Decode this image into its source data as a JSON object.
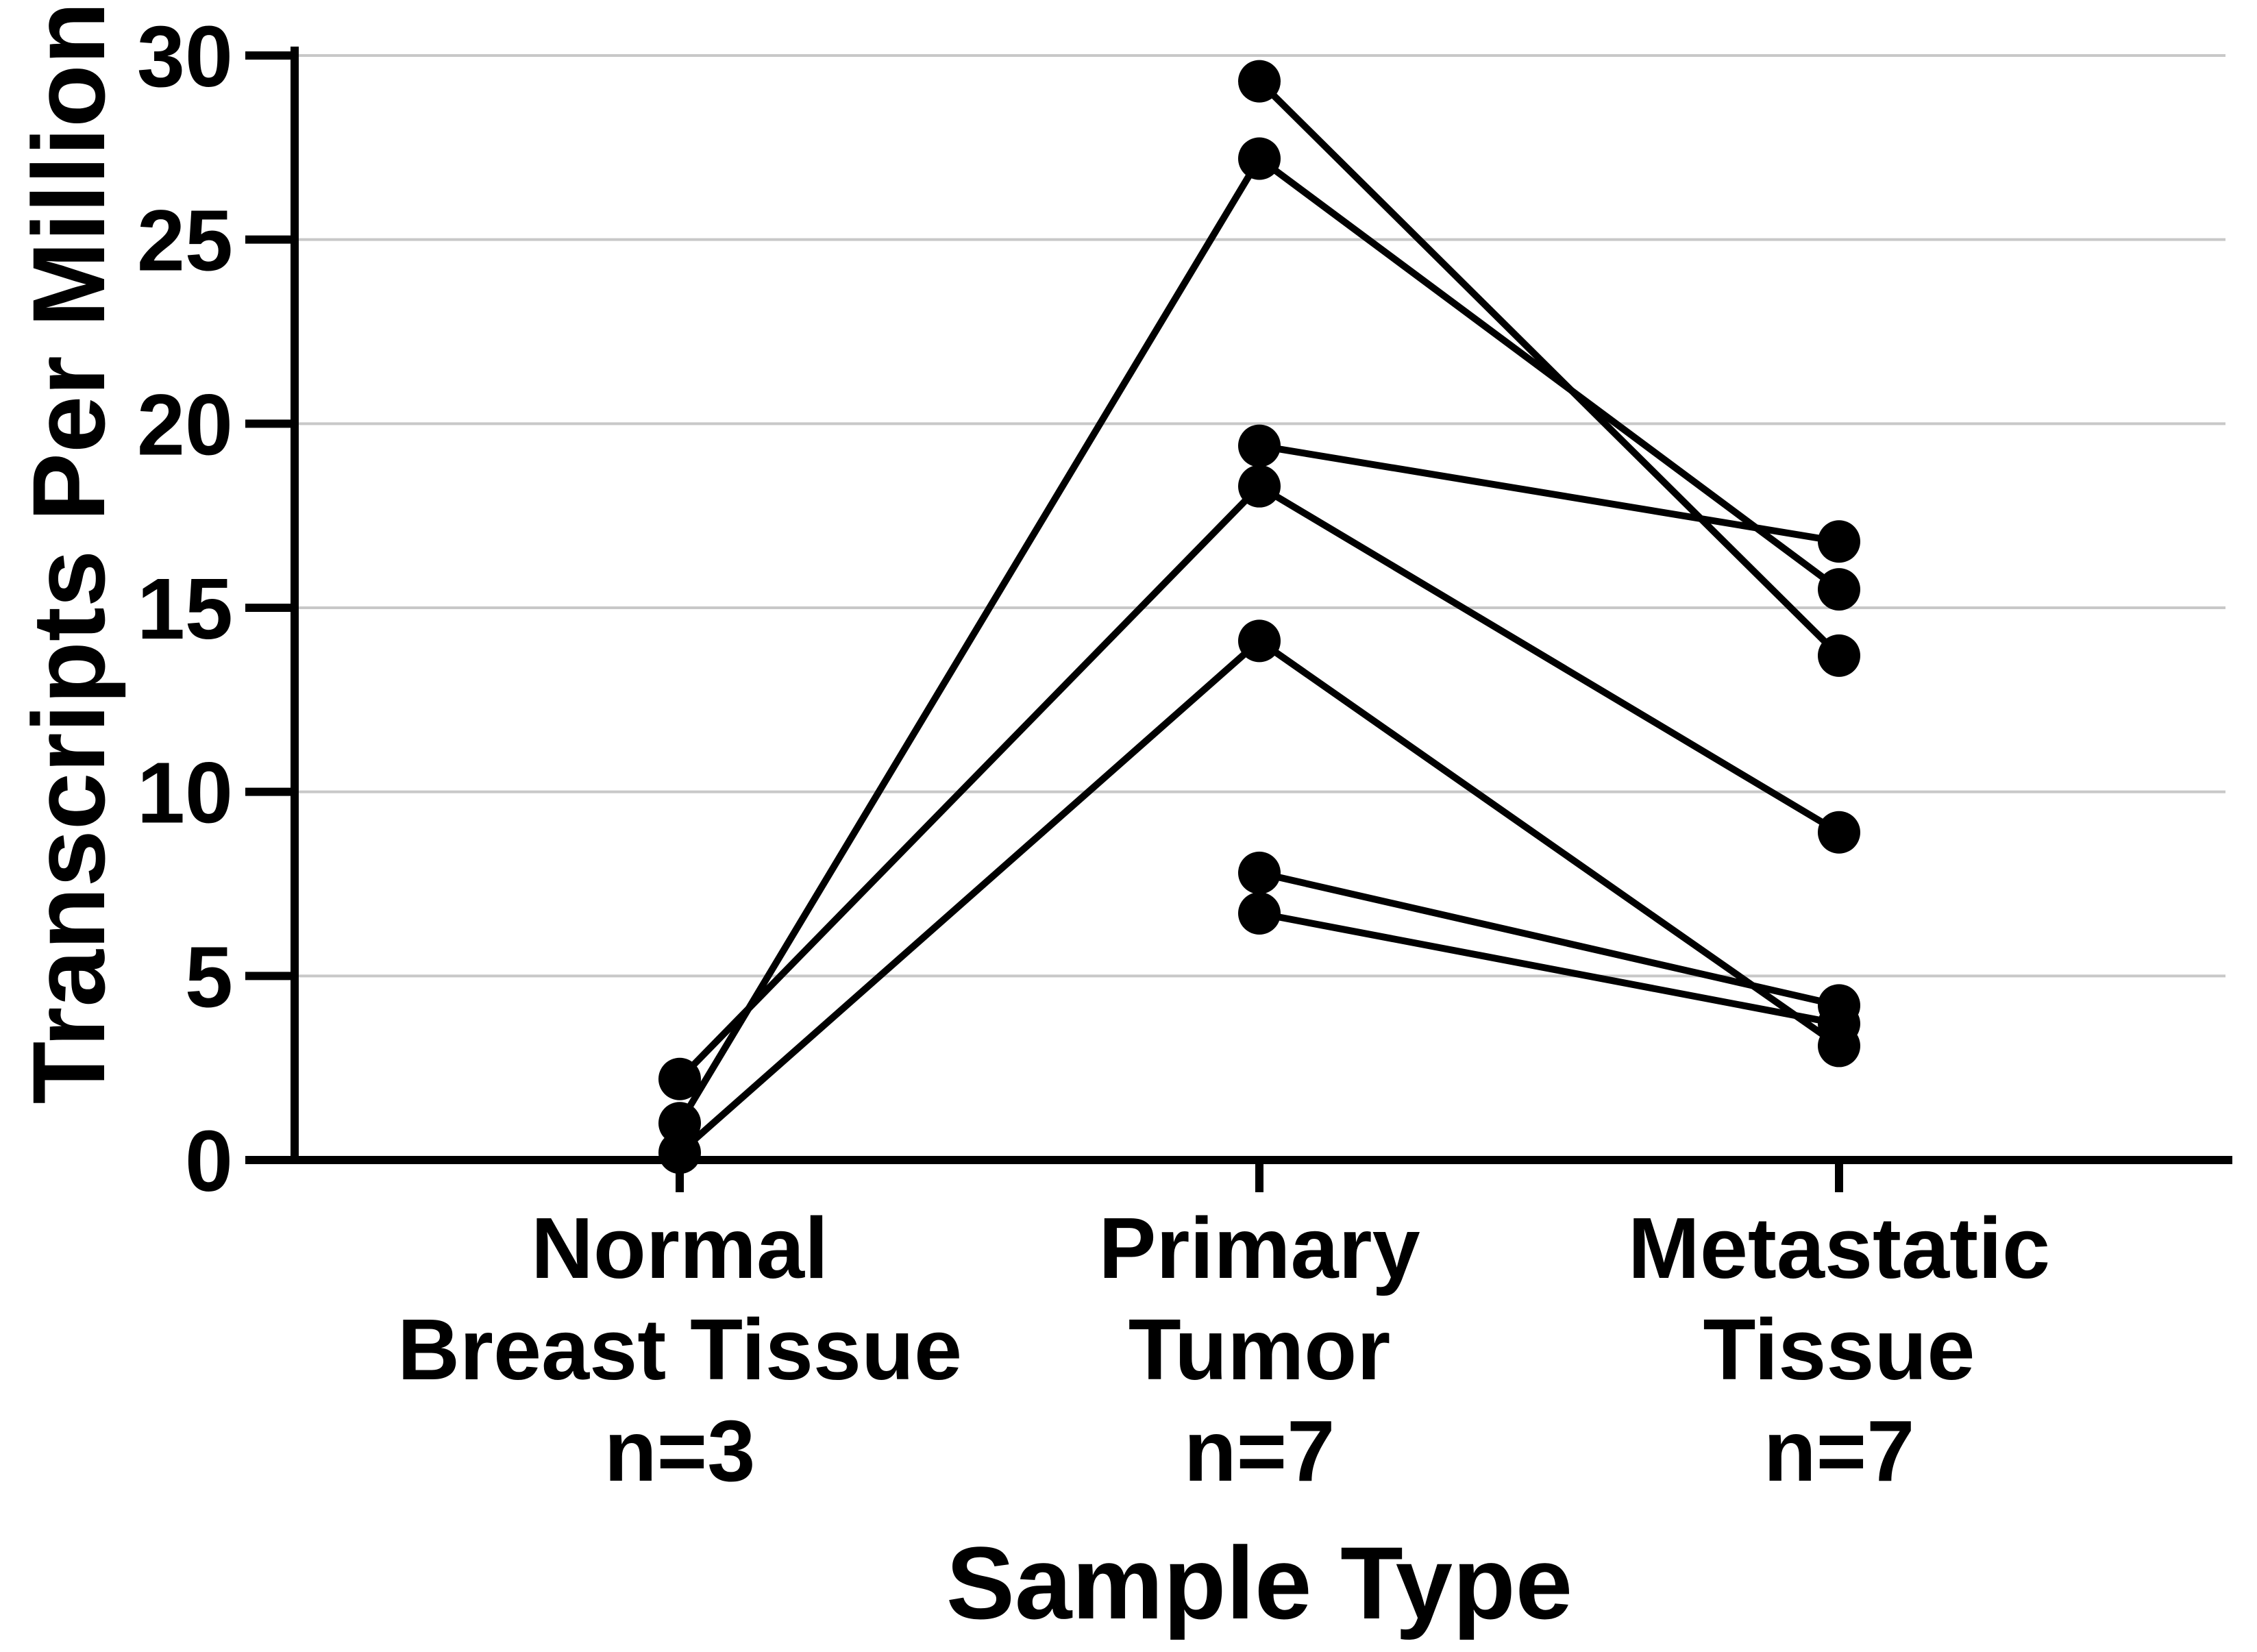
{
  "figure": {
    "background_color": "#ffffff",
    "ink_color": "#000000",
    "grid_color": "#c8c8c8"
  },
  "chart_data": {
    "type": "scatter",
    "subtype": "paired-connected-scatter",
    "title": "",
    "xlabel": "Sample Type",
    "ylabel": "Transcripts Per Million",
    "ylim": [
      0,
      30
    ],
    "yticks": [
      0,
      5,
      10,
      15,
      20,
      25,
      30
    ],
    "gridline_values": [
      5,
      10,
      15,
      20,
      25,
      30
    ],
    "grid": "horizontal-light-gray-lines",
    "legend_position": "none",
    "marker_shape": "circle",
    "marker_color": "#000000",
    "line_color": "#000000",
    "categories": [
      {
        "label_lines": [
          "Normal",
          "Breast Tissue",
          "n=3"
        ],
        "n": 3
      },
      {
        "label_lines": [
          "Primary",
          "Tumor",
          "n=7"
        ],
        "n": 7
      },
      {
        "label_lines": [
          "Metastatic",
          "Tissue",
          "n=7"
        ],
        "n": 7
      }
    ],
    "series": [
      {
        "name": "sample-pair-1",
        "values": [
          1.0,
          27.2,
          15.5
        ]
      },
      {
        "name": "sample-pair-2",
        "values": [
          2.2,
          18.3,
          8.9
        ]
      },
      {
        "name": "sample-pair-3",
        "values": [
          0.2,
          14.1,
          3.1
        ]
      },
      {
        "name": "sample-pair-4",
        "values": [
          null,
          29.3,
          13.7
        ]
      },
      {
        "name": "sample-pair-5",
        "values": [
          null,
          19.4,
          16.8
        ]
      },
      {
        "name": "sample-pair-6",
        "values": [
          null,
          7.8,
          4.2
        ]
      },
      {
        "name": "sample-pair-7",
        "values": [
          null,
          6.7,
          3.7
        ]
      }
    ]
  }
}
